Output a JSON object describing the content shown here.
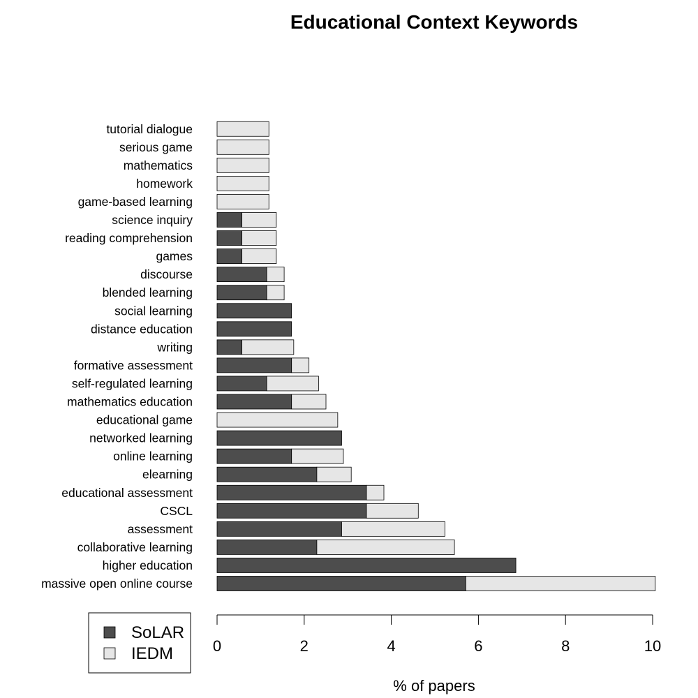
{
  "chart_data": {
    "type": "bar",
    "orientation": "horizontal",
    "stacked": true,
    "title": "Educational Context Keywords",
    "xlabel": "% of papers",
    "ylabel": "",
    "xlim": [
      0,
      10
    ],
    "xticks": [
      0,
      2,
      4,
      6,
      8,
      10
    ],
    "grid": false,
    "legend_position": "bottom-left",
    "categories": [
      "massive open online course",
      "higher education",
      "collaborative learning",
      "assessment",
      "CSCL",
      "educational assessment",
      "elearning",
      "online learning",
      "networked learning",
      "educational game",
      "mathematics education",
      "self-regulated learning",
      "formative assessment",
      "writing",
      "distance education",
      "social learning",
      "blended learning",
      "discourse",
      "games",
      "reading comprehension",
      "science inquiry",
      "game-based learning",
      "homework",
      "mathematics",
      "serious game",
      "tutorial dialogue"
    ],
    "series": [
      {
        "name": "SoLAR",
        "color": "#4d4d4d",
        "values": [
          5.71,
          6.86,
          2.29,
          2.86,
          3.43,
          3.43,
          2.29,
          1.71,
          2.86,
          0,
          1.71,
          1.14,
          1.71,
          0.57,
          1.71,
          1.71,
          1.14,
          1.14,
          0.57,
          0.57,
          0.57,
          0,
          0,
          0,
          0,
          0
        ]
      },
      {
        "name": "IEDM",
        "color": "#e6e6e6",
        "values": [
          4.35,
          0,
          3.16,
          2.37,
          1.19,
          0.4,
          0.79,
          1.19,
          0,
          2.77,
          0.79,
          1.19,
          0.4,
          1.19,
          0,
          0,
          0.4,
          0.4,
          0.79,
          0.79,
          0.79,
          1.19,
          1.19,
          1.19,
          1.19,
          1.19
        ]
      }
    ]
  }
}
